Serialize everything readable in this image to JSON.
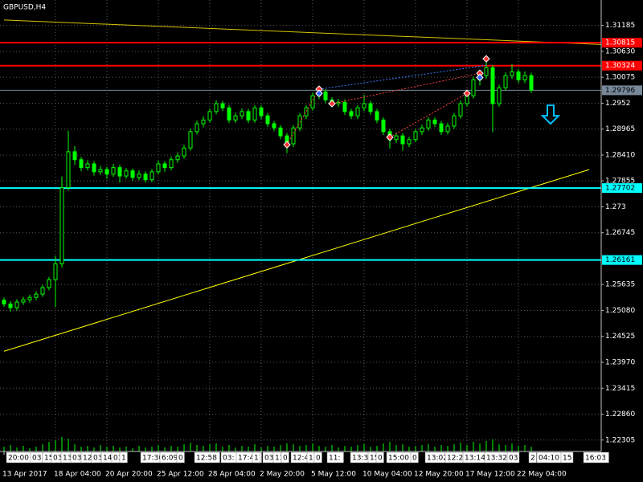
{
  "chart_data": {
    "type": "candlestick",
    "title": "GBPUSD,H4",
    "categories": [
      "13 Apr 2017",
      null,
      null,
      null,
      null,
      null,
      null,
      null,
      "18 Apr 04:00",
      null,
      null,
      null,
      null,
      null,
      null,
      null,
      "20 Apr 20:00",
      null,
      null,
      null,
      null,
      null,
      null,
      null,
      "25 Apr 12:00",
      null,
      null,
      null,
      null,
      null,
      null,
      null,
      "28 Apr 04:00",
      null,
      null,
      null,
      null,
      null,
      null,
      null,
      "2 May 20:00",
      null,
      null,
      null,
      null,
      null,
      null,
      null,
      "5 May 12:00",
      null,
      null,
      null,
      null,
      null,
      null,
      null,
      "10 May 04:00",
      null,
      null,
      null,
      null,
      null,
      null,
      null,
      "12 May 20:00",
      null,
      null,
      null,
      null,
      null,
      null,
      null,
      "17 May 12:00",
      null,
      null,
      null,
      null,
      null,
      null,
      null,
      "22 May 04:00",
      null,
      null
    ],
    "open": [
      1.253,
      1.2522,
      1.2514,
      1.2526,
      1.2531,
      1.2536,
      1.2543,
      1.2557,
      1.2574,
      1.2608,
      1.2771,
      1.2848,
      1.2831,
      1.2814,
      1.2822,
      1.2805,
      1.281,
      1.28,
      1.2814,
      1.2796,
      1.2807,
      1.2793,
      1.28,
      1.2788,
      1.2805,
      1.2822,
      1.2814,
      1.2831,
      1.2839,
      1.2856,
      1.2891,
      1.2908,
      1.2916,
      1.2934,
      1.2951,
      1.2942,
      1.2916,
      1.2925,
      1.2934,
      1.2916,
      1.2942,
      1.2925,
      1.2908,
      1.2899,
      1.2882,
      1.2865,
      1.2899,
      1.2925,
      1.2942,
      1.2968,
      1.2976,
      1.2959,
      1.2951,
      1.2954,
      1.2934,
      1.2925,
      1.2942,
      1.2951,
      1.2934,
      1.2916,
      1.2891,
      1.2874,
      1.2882,
      1.2865,
      1.2874,
      1.2891,
      1.2899,
      1.2916,
      1.2908,
      1.2891,
      1.2903,
      1.2925,
      1.2951,
      1.2968,
      1.3002,
      1.3011,
      1.3028,
      1.2951,
      1.2985,
      1.3011,
      1.3019,
      1.3002,
      1.3011
    ],
    "high": [
      1.2536,
      1.2528,
      1.2532,
      1.2537,
      1.2542,
      1.2549,
      1.2563,
      1.258,
      1.2625,
      1.2795,
      1.2893,
      1.286,
      1.2837,
      1.283,
      1.2828,
      1.2818,
      1.2816,
      1.2822,
      1.282,
      1.2813,
      1.2812,
      1.2808,
      1.2806,
      1.2811,
      1.283,
      1.2828,
      1.2838,
      1.2847,
      1.2863,
      1.2898,
      1.2915,
      1.2924,
      1.2941,
      1.2958,
      1.2957,
      1.2948,
      1.2932,
      1.2941,
      1.294,
      1.2948,
      1.2948,
      1.2931,
      1.2914,
      1.2905,
      1.2888,
      1.2905,
      1.2931,
      1.2948,
      1.2975,
      1.2984,
      1.2982,
      1.2965,
      1.2961,
      1.296,
      1.294,
      1.2948,
      1.297,
      1.2957,
      1.294,
      1.2922,
      1.2897,
      1.2889,
      1.2888,
      1.288,
      1.2897,
      1.2906,
      1.2922,
      1.2922,
      1.2914,
      1.291,
      1.2931,
      1.2958,
      1.2975,
      1.3009,
      1.3018,
      1.3046,
      1.3034,
      1.2992,
      1.3018,
      1.3035,
      1.3025,
      1.302,
      1.3017
    ],
    "low": [
      1.2516,
      1.2505,
      1.2508,
      1.252,
      1.2525,
      1.253,
      1.2537,
      1.2551,
      1.2515,
      1.26,
      1.2765,
      1.282,
      1.2806,
      1.2808,
      1.2797,
      1.2799,
      1.279,
      1.2794,
      1.2782,
      1.279,
      1.2786,
      1.2787,
      1.2782,
      1.2783,
      1.2799,
      1.2805,
      1.2808,
      1.2824,
      1.2833,
      1.285,
      1.2885,
      1.29,
      1.291,
      1.2928,
      1.2935,
      1.2909,
      1.291,
      1.2918,
      1.2909,
      1.291,
      1.2918,
      1.2901,
      1.2892,
      1.2875,
      1.2845,
      1.2858,
      1.2892,
      1.2918,
      1.2936,
      1.2961,
      1.2952,
      1.2944,
      1.2944,
      1.2927,
      1.2918,
      1.2918,
      1.2935,
      1.2927,
      1.2909,
      1.2884,
      1.2855,
      1.2867,
      1.285,
      1.2858,
      1.2868,
      1.2884,
      1.2893,
      1.2901,
      1.2884,
      1.2885,
      1.2897,
      1.2919,
      1.2945,
      1.2962,
      1.299,
      1.3005,
      1.289,
      1.2944,
      1.2979,
      1.3004,
      1.2995,
      1.2995,
      1.2974
    ],
    "close": [
      1.2522,
      1.2514,
      1.2526,
      1.2531,
      1.2536,
      1.2543,
      1.2557,
      1.2574,
      1.2608,
      1.2771,
      1.2848,
      1.2831,
      1.2814,
      1.2822,
      1.2805,
      1.281,
      1.28,
      1.2814,
      1.2796,
      1.2807,
      1.2793,
      1.28,
      1.2788,
      1.2805,
      1.2822,
      1.2814,
      1.2831,
      1.2839,
      1.2856,
      1.2891,
      1.2908,
      1.2916,
      1.2934,
      1.2951,
      1.2942,
      1.2916,
      1.2925,
      1.2934,
      1.2916,
      1.2942,
      1.2925,
      1.2908,
      1.2899,
      1.2882,
      1.2865,
      1.2899,
      1.2925,
      1.2942,
      1.2968,
      1.2976,
      1.2959,
      1.2951,
      1.2954,
      1.2934,
      1.2925,
      1.2942,
      1.2951,
      1.2934,
      1.2916,
      1.2891,
      1.2874,
      1.2882,
      1.2865,
      1.2874,
      1.2891,
      1.2899,
      1.2916,
      1.2908,
      1.2891,
      1.2903,
      1.2925,
      1.2951,
      1.2968,
      1.3002,
      1.3011,
      1.3028,
      1.2951,
      1.2985,
      1.3011,
      1.3019,
      1.3002,
      1.3011,
      1.298
    ],
    "volumes": [
      6,
      8,
      5,
      7,
      4,
      6,
      9,
      12,
      14,
      18,
      16,
      9,
      6,
      7,
      5,
      8,
      6,
      7,
      5,
      6,
      4,
      7,
      5,
      6,
      8,
      5,
      7,
      6,
      9,
      11,
      8,
      7,
      9,
      10,
      6,
      8,
      5,
      7,
      6,
      9,
      5,
      7,
      6,
      8,
      10,
      9,
      7,
      8,
      10,
      7,
      6,
      8,
      5,
      7,
      6,
      8,
      9,
      6,
      7,
      10,
      12,
      8,
      9,
      6,
      7,
      8,
      9,
      6,
      8,
      7,
      9,
      11,
      8,
      12,
      10,
      13,
      15,
      9,
      8,
      10,
      7,
      8,
      6
    ],
    "color": "#00ff00",
    "ylim": [
      1.2206,
      1.3173
    ],
    "yticks": [
      1.31185,
      {
        "value": 1.3063,
        "label": "1.30630"
      },
      1.30075,
      1.2952,
      {
        "value": 1.28965,
        "label": "1.28965"
      },
      {
        "value": 1.2841,
        "label": "1.28410"
      },
      1.27855,
      1.273,
      {
        "value": 1.26745,
        "label": "1.26745"
      },
      1.25635,
      {
        "value": 1.2508,
        "label": "1.25080"
      },
      1.24525,
      {
        "value": 1.2397,
        "label": "1.23970"
      },
      1.23415,
      {
        "value": 1.2286,
        "label": "1.22860"
      },
      1.22305
    ],
    "grid": true,
    "levels": [
      {
        "value": 1.30815,
        "color": "#ff0000",
        "text_color": "#ffffff"
      },
      {
        "value": 1.30324,
        "color": "#ff0000",
        "text_color": "#ffffff"
      },
      {
        "value": 1.29796,
        "color": "#778899",
        "text_color": "#000000"
      },
      {
        "value": 1.27702,
        "color": "#00ffff",
        "text_color": "#000000"
      },
      {
        "value": 1.26161,
        "color": "#00ffff",
        "text_color": "#000000"
      }
    ],
    "trendlines": [
      {
        "x": [
          0,
          91
        ],
        "y": [
          1.24206,
          1.28097
        ],
        "color": "#ffff00"
      },
      {
        "x": [
          0,
          99
        ],
        "y": [
          1.31301,
          1.30743
        ],
        "color": "#d4c400"
      }
    ],
    "dotted_lines": [
      {
        "x": [
          49,
          75
        ],
        "y": [
          1.2982,
          1.3033
        ],
        "color": "#3a7bff"
      },
      {
        "x": [
          44,
          49
        ],
        "y": [
          1.2863,
          1.2982
        ],
        "color": "#ff4040"
      },
      {
        "x": [
          51,
          74
        ],
        "y": [
          1.2951,
          1.3016
        ],
        "color": "#ff4040"
      },
      {
        "x": [
          60,
          72
        ],
        "y": [
          1.2879,
          1.2973
        ],
        "color": "#ff4040"
      }
    ],
    "markers": [
      {
        "x": 44,
        "value": 1.2863,
        "color": "#ff3030"
      },
      {
        "x": 49,
        "value": 1.2982,
        "color": "#ff3030"
      },
      {
        "x": 51,
        "value": 1.2951,
        "color": "#ff3030"
      },
      {
        "x": 60,
        "value": 1.2879,
        "color": "#ff3030"
      },
      {
        "x": 72,
        "value": 1.2973,
        "color": "#ff3030"
      },
      {
        "x": 74,
        "value": 1.3016,
        "color": "#ff3030"
      },
      {
        "x": 75,
        "value": 1.3047,
        "color": "#ff3030"
      },
      {
        "x": 49,
        "value": 1.2973,
        "color": "#3060ff"
      },
      {
        "x": 74,
        "value": 1.3007,
        "color": "#3060ff"
      }
    ],
    "arrow": {
      "x": 85,
      "value": 1.2925,
      "color": "#00bfff"
    },
    "time_strip": [
      "20:00",
      "03",
      "15",
      "03",
      "13",
      "03",
      "12",
      "03",
      "14",
      "03",
      "1",
      "17:30",
      "6:09",
      "0",
      "12:58",
      "03:",
      "17:45",
      "1",
      "03:",
      "13",
      "0",
      "12:40",
      "1",
      "0",
      "11:",
      "13:38",
      "15",
      "0",
      "15:00",
      "0",
      "13:02",
      "12:29",
      "13:14",
      "13:32",
      "03",
      "2",
      "04:10",
      "15",
      "16:03"
    ]
  }
}
